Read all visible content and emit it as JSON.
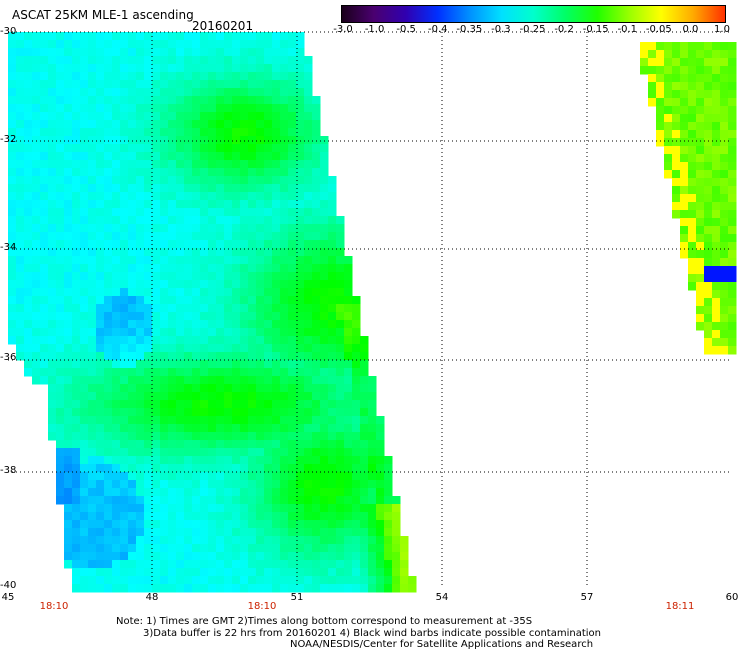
{
  "header": {
    "title": "ASCAT 25KM MLE-1 ascending",
    "date": "20160201"
  },
  "colorbar": {
    "labels": [
      "-3.0",
      "-1.0",
      "-0.5",
      "-0.4",
      "-0.35",
      "-0.3",
      "-0.25",
      "-0.2",
      "-0.15",
      "-0.1",
      "-0.05",
      "0.0",
      "1.0"
    ],
    "colors": [
      "#1a001a",
      "#4a0070",
      "#3000b0",
      "#0030ff",
      "#0090ff",
      "#00e0ff",
      "#00ffcc",
      "#00ff66",
      "#20ff00",
      "#99ff00",
      "#ffff00",
      "#ffaa00",
      "#ff3000"
    ]
  },
  "axes": {
    "lat_labels": [
      "-30",
      "-32",
      "-34",
      "-36",
      "-38",
      "-40"
    ],
    "lon_labels": [
      "45",
      "48",
      "51",
      "54",
      "57",
      "60"
    ],
    "times": [
      "18:10",
      "18:10",
      "18:11"
    ]
  },
  "notes": {
    "line1": "Note: 1) Times are GMT 2)Times along bottom correspond to measurement at -35S",
    "line2": "3)Data buffer is 22 hrs from 20160201 4) Black wind barbs indicate possible contamination",
    "line3": "NOAA/NESDIS/Center for Satellite Applications and Research"
  }
}
